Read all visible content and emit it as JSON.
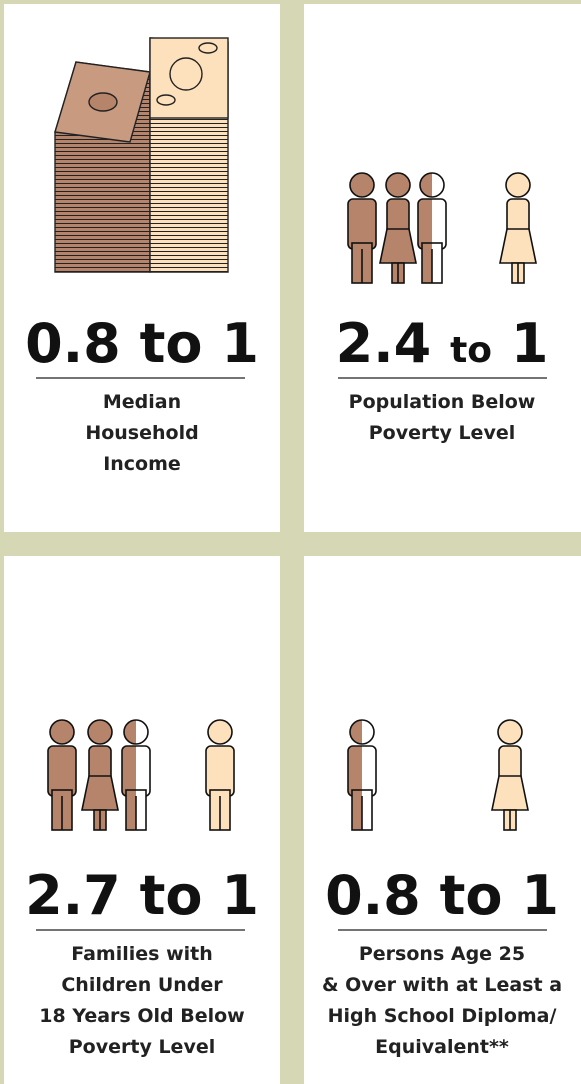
{
  "panels": [
    {
      "ratio": {
        "left": "0.8",
        "mid": "to",
        "right": "1"
      },
      "label": [
        "Median",
        "Household",
        "Income"
      ]
    },
    {
      "ratio": {
        "left": "2.4",
        "mid": "to",
        "right": "1"
      },
      "label": [
        "Population Below",
        "Poverty Level"
      ]
    },
    {
      "ratio": {
        "left": "2.7",
        "mid": "to",
        "right": "1"
      },
      "label": [
        "Families with",
        "Children Under",
        "18 Years Old Below",
        "Poverty Level"
      ]
    },
    {
      "ratio": {
        "left": "0.8",
        "mid": "to",
        "right": "1"
      },
      "label": [
        "Persons Age 25",
        "& Over with at Least a",
        "High School Diploma/",
        "Equivalent**"
      ]
    }
  ]
}
